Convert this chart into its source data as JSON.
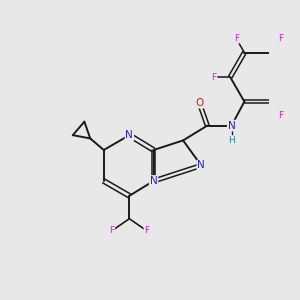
{
  "bg_color": "#e8e8e8",
  "bond_color": "#1a1a1a",
  "N_color": "#2222cc",
  "O_color": "#cc2222",
  "F_color": "#cc22cc",
  "H_color": "#228888",
  "figsize": [
    3.0,
    3.0
  ],
  "dpi": 100,
  "xlim": [
    0,
    10
  ],
  "ylim": [
    0,
    10
  ]
}
